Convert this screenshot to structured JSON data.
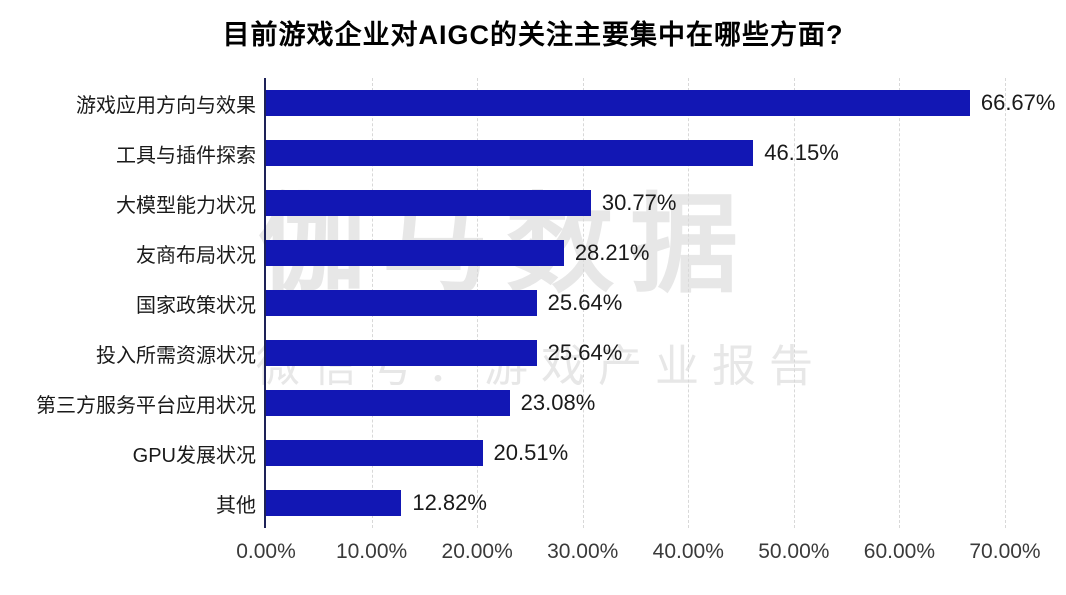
{
  "title": "目前游戏企业对AIGC的关注主要集中在哪些方面?",
  "watermark": {
    "line1": "伽马数据",
    "line2": "微信号：游戏产业报告"
  },
  "colors": {
    "bar": "#1217b4",
    "axis_line": "#1e2258",
    "gridline": "#d8d8d8",
    "title_text": "#000000",
    "label_text": "#1a1a1a",
    "tick_text": "#3a3a3a",
    "watermark_text": "#e7e7e7"
  },
  "chart_data": {
    "type": "bar",
    "orientation": "horizontal",
    "title": "目前游戏企业对AIGC的关注主要集中在哪些方面?",
    "categories": [
      "游戏应用方向与效果",
      "工具与插件探索",
      "大模型能力状况",
      "友商布局状况",
      "国家政策状况",
      "投入所需资源状况",
      "第三方服务平台应用状况",
      "GPU发展状况",
      "其他"
    ],
    "values": [
      66.67,
      46.15,
      30.77,
      28.21,
      25.64,
      25.64,
      23.08,
      20.51,
      12.82
    ],
    "value_labels": [
      "66.67%",
      "46.15%",
      "30.77%",
      "28.21%",
      "25.64%",
      "25.64%",
      "23.08%",
      "20.51%",
      "12.82%"
    ],
    "x_ticks": [
      0,
      10,
      20,
      30,
      40,
      50,
      60,
      70
    ],
    "x_tick_labels": [
      "0.00%",
      "10.00%",
      "20.00%",
      "30.00%",
      "40.00%",
      "50.00%",
      "60.00%",
      "70.00%"
    ],
    "xlim": [
      0,
      70
    ],
    "xlabel": "",
    "ylabel": "",
    "grid": "vertical-dashed",
    "legend": "none"
  }
}
